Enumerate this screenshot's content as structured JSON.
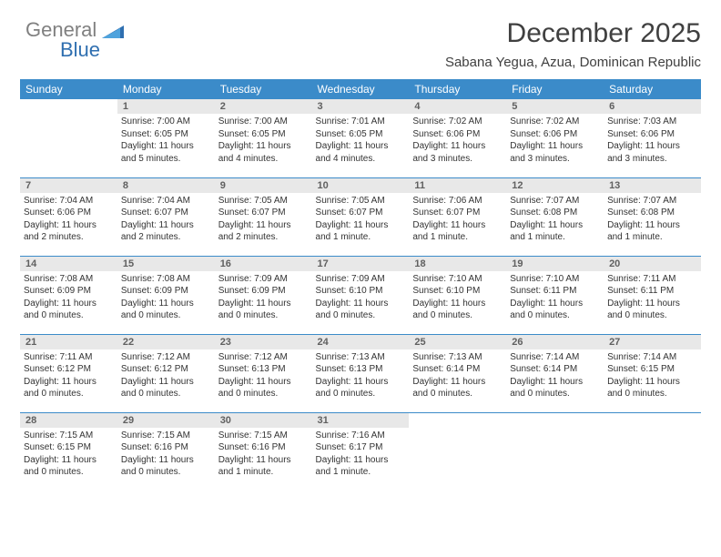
{
  "logo": {
    "gray": "General",
    "blue": "Blue"
  },
  "title": "December 2025",
  "subtitle": "Sabana Yegua, Azua, Dominican Republic",
  "colors": {
    "header_bg": "#3b8bc9",
    "header_fg": "#ffffff",
    "daynum_bg": "#e8e8e8",
    "row_border": "#3b8bc9"
  },
  "weekdays": [
    "Sunday",
    "Monday",
    "Tuesday",
    "Wednesday",
    "Thursday",
    "Friday",
    "Saturday"
  ],
  "weeks": [
    [
      {
        "empty": true
      },
      {
        "day": "1",
        "sunrise": "7:00 AM",
        "sunset": "6:05 PM",
        "daylight": "11 hours and 5 minutes."
      },
      {
        "day": "2",
        "sunrise": "7:00 AM",
        "sunset": "6:05 PM",
        "daylight": "11 hours and 4 minutes."
      },
      {
        "day": "3",
        "sunrise": "7:01 AM",
        "sunset": "6:05 PM",
        "daylight": "11 hours and 4 minutes."
      },
      {
        "day": "4",
        "sunrise": "7:02 AM",
        "sunset": "6:06 PM",
        "daylight": "11 hours and 3 minutes."
      },
      {
        "day": "5",
        "sunrise": "7:02 AM",
        "sunset": "6:06 PM",
        "daylight": "11 hours and 3 minutes."
      },
      {
        "day": "6",
        "sunrise": "7:03 AM",
        "sunset": "6:06 PM",
        "daylight": "11 hours and 3 minutes."
      }
    ],
    [
      {
        "day": "7",
        "sunrise": "7:04 AM",
        "sunset": "6:06 PM",
        "daylight": "11 hours and 2 minutes."
      },
      {
        "day": "8",
        "sunrise": "7:04 AM",
        "sunset": "6:07 PM",
        "daylight": "11 hours and 2 minutes."
      },
      {
        "day": "9",
        "sunrise": "7:05 AM",
        "sunset": "6:07 PM",
        "daylight": "11 hours and 2 minutes."
      },
      {
        "day": "10",
        "sunrise": "7:05 AM",
        "sunset": "6:07 PM",
        "daylight": "11 hours and 1 minute."
      },
      {
        "day": "11",
        "sunrise": "7:06 AM",
        "sunset": "6:07 PM",
        "daylight": "11 hours and 1 minute."
      },
      {
        "day": "12",
        "sunrise": "7:07 AM",
        "sunset": "6:08 PM",
        "daylight": "11 hours and 1 minute."
      },
      {
        "day": "13",
        "sunrise": "7:07 AM",
        "sunset": "6:08 PM",
        "daylight": "11 hours and 1 minute."
      }
    ],
    [
      {
        "day": "14",
        "sunrise": "7:08 AM",
        "sunset": "6:09 PM",
        "daylight": "11 hours and 0 minutes."
      },
      {
        "day": "15",
        "sunrise": "7:08 AM",
        "sunset": "6:09 PM",
        "daylight": "11 hours and 0 minutes."
      },
      {
        "day": "16",
        "sunrise": "7:09 AM",
        "sunset": "6:09 PM",
        "daylight": "11 hours and 0 minutes."
      },
      {
        "day": "17",
        "sunrise": "7:09 AM",
        "sunset": "6:10 PM",
        "daylight": "11 hours and 0 minutes."
      },
      {
        "day": "18",
        "sunrise": "7:10 AM",
        "sunset": "6:10 PM",
        "daylight": "11 hours and 0 minutes."
      },
      {
        "day": "19",
        "sunrise": "7:10 AM",
        "sunset": "6:11 PM",
        "daylight": "11 hours and 0 minutes."
      },
      {
        "day": "20",
        "sunrise": "7:11 AM",
        "sunset": "6:11 PM",
        "daylight": "11 hours and 0 minutes."
      }
    ],
    [
      {
        "day": "21",
        "sunrise": "7:11 AM",
        "sunset": "6:12 PM",
        "daylight": "11 hours and 0 minutes."
      },
      {
        "day": "22",
        "sunrise": "7:12 AM",
        "sunset": "6:12 PM",
        "daylight": "11 hours and 0 minutes."
      },
      {
        "day": "23",
        "sunrise": "7:12 AM",
        "sunset": "6:13 PM",
        "daylight": "11 hours and 0 minutes."
      },
      {
        "day": "24",
        "sunrise": "7:13 AM",
        "sunset": "6:13 PM",
        "daylight": "11 hours and 0 minutes."
      },
      {
        "day": "25",
        "sunrise": "7:13 AM",
        "sunset": "6:14 PM",
        "daylight": "11 hours and 0 minutes."
      },
      {
        "day": "26",
        "sunrise": "7:14 AM",
        "sunset": "6:14 PM",
        "daylight": "11 hours and 0 minutes."
      },
      {
        "day": "27",
        "sunrise": "7:14 AM",
        "sunset": "6:15 PM",
        "daylight": "11 hours and 0 minutes."
      }
    ],
    [
      {
        "day": "28",
        "sunrise": "7:15 AM",
        "sunset": "6:15 PM",
        "daylight": "11 hours and 0 minutes."
      },
      {
        "day": "29",
        "sunrise": "7:15 AM",
        "sunset": "6:16 PM",
        "daylight": "11 hours and 0 minutes."
      },
      {
        "day": "30",
        "sunrise": "7:15 AM",
        "sunset": "6:16 PM",
        "daylight": "11 hours and 1 minute."
      },
      {
        "day": "31",
        "sunrise": "7:16 AM",
        "sunset": "6:17 PM",
        "daylight": "11 hours and 1 minute."
      },
      {
        "empty": true
      },
      {
        "empty": true
      },
      {
        "empty": true
      }
    ]
  ],
  "labels": {
    "sunrise": "Sunrise:",
    "sunset": "Sunset:",
    "daylight": "Daylight:"
  }
}
